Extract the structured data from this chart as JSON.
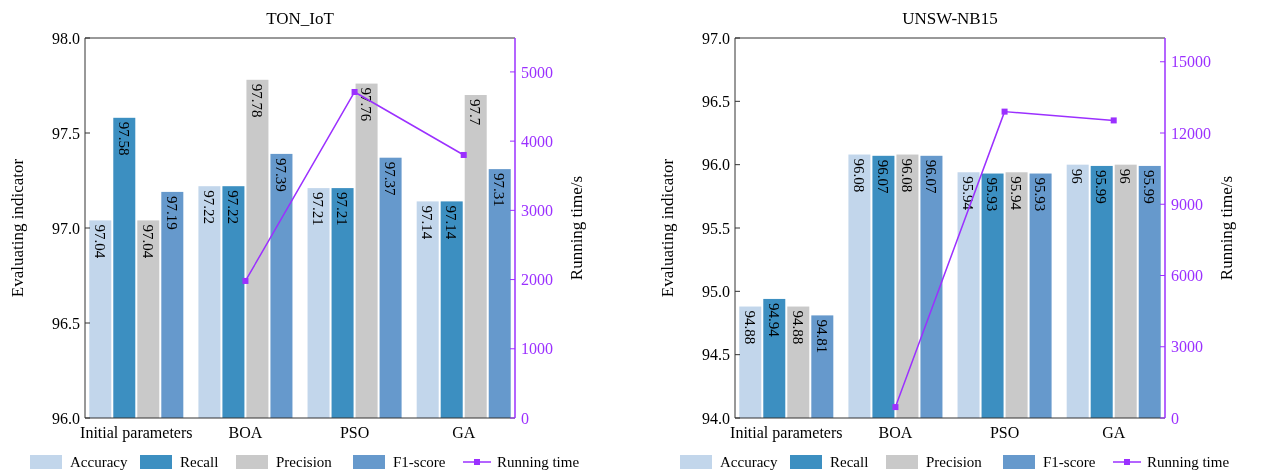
{
  "chart_data": [
    {
      "type": "bar",
      "title": "TON_IoT",
      "categories": [
        "Initial parameters",
        "BOA",
        "PSO",
        "GA"
      ],
      "ylabel": "Evaluating indicator",
      "y2label": "Running time/s",
      "ylim": [
        96,
        98
      ],
      "yticks": [
        {
          "value": 96,
          "label": "96.0"
        },
        96.5,
        {
          "value": 97,
          "label": "97.0"
        },
        97.5,
        {
          "value": 98,
          "label": "98.0"
        }
      ],
      "y2lim": [
        0,
        5490
      ],
      "y2ticks": [
        0,
        1000,
        2000,
        3000,
        4000,
        5000
      ],
      "legend": "bottom",
      "series": [
        {
          "name": "Accuracy",
          "color": "#c2d6eb",
          "values": [
            97.04,
            97.22,
            97.21,
            97.14
          ],
          "value_labels": [
            "97.04",
            "97.22",
            "97.21",
            "97.14"
          ]
        },
        {
          "name": "Recall",
          "color": "#3c8fc1",
          "values": [
            97.58,
            97.22,
            97.21,
            97.14
          ],
          "value_labels": [
            "97.58",
            "97.22",
            "97.21",
            "97.14"
          ]
        },
        {
          "name": "Precision",
          "color": "#c9c9c9",
          "values": [
            97.04,
            97.78,
            97.76,
            97.7
          ],
          "value_labels": [
            "97.04",
            "97.78",
            "97.76",
            "97.7"
          ]
        },
        {
          "name": "F1-score",
          "color": "#6699cc",
          "values": [
            97.19,
            97.39,
            97.37,
            97.31
          ],
          "value_labels": [
            "97.19",
            "97.39",
            "97.37",
            "97.31"
          ]
        },
        {
          "name": "Running time",
          "type": "line",
          "axis": "y2",
          "marker": "square",
          "color": "#9b30ff",
          "values": [
            null,
            1980,
            4710,
            3800
          ]
        }
      ]
    },
    {
      "type": "bar",
      "title": "UNSW-NB15",
      "categories": [
        "Initial parameters",
        "BOA",
        "PSO",
        "GA"
      ],
      "ylabel": "Evaluating indicator",
      "y2label": "Running time/s",
      "ylim": [
        94,
        97
      ],
      "yticks": [
        {
          "value": 94,
          "label": "94.0"
        },
        94.5,
        {
          "value": 95,
          "label": "95.0"
        },
        95.5,
        {
          "value": 96,
          "label": "96.0"
        },
        96.5,
        {
          "value": 97,
          "label": "97.0"
        }
      ],
      "y2lim": [
        0,
        16000
      ],
      "y2ticks": [
        0,
        3000,
        6000,
        9000,
        12000,
        15000
      ],
      "legend": "bottom",
      "series": [
        {
          "name": "Accuracy",
          "color": "#c2d6eb",
          "values": [
            94.88,
            96.08,
            95.94,
            96
          ],
          "value_labels": [
            "94.88",
            "96.08",
            "95.94",
            "96"
          ]
        },
        {
          "name": "Recall",
          "color": "#3c8fc1",
          "values": [
            94.94,
            96.07,
            95.93,
            95.99
          ],
          "value_labels": [
            "94.94",
            "96.07",
            "95.93",
            "95.99"
          ]
        },
        {
          "name": "Precision",
          "color": "#c9c9c9",
          "values": [
            94.88,
            96.08,
            95.94,
            96
          ],
          "value_labels": [
            "94.88",
            "96.08",
            "95.94",
            "96"
          ]
        },
        {
          "name": "F1-score",
          "color": "#6699cc",
          "values": [
            94.81,
            96.07,
            95.93,
            95.99
          ],
          "value_labels": [
            "94.81",
            "96.07",
            "95.93",
            "95.99"
          ]
        },
        {
          "name": "Running time",
          "type": "line",
          "axis": "y2",
          "marker": "square",
          "color": "#9b30ff",
          "values": [
            null,
            460,
            12900,
            12530
          ]
        }
      ]
    }
  ]
}
